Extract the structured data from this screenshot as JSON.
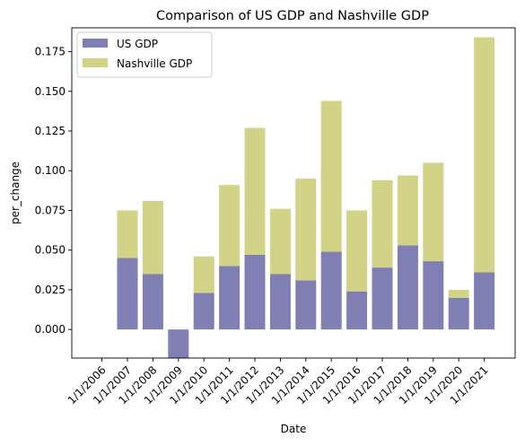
{
  "chart_data": {
    "type": "bar",
    "stacked": true,
    "title": "Comparison of US GDP and Nashville GDP",
    "xlabel": "Date",
    "ylabel": "per_change",
    "categories": [
      "1/1/2006",
      "1/1/2007",
      "1/1/2008",
      "1/1/2009",
      "1/1/2010",
      "1/1/2011",
      "1/1/2012",
      "1/1/2013",
      "1/1/2014",
      "1/1/2015",
      "1/1/2016",
      "1/1/2017",
      "1/1/2018",
      "1/1/2019",
      "1/1/2020",
      "1/1/2021"
    ],
    "series": [
      {
        "name": "US GDP",
        "color": "#7f7fb3",
        "values": [
          null,
          0.045,
          0.035,
          -0.018,
          0.023,
          0.04,
          0.047,
          0.035,
          0.031,
          0.049,
          0.024,
          0.039,
          0.053,
          0.043,
          0.02,
          0.036
        ]
      },
      {
        "name": "Nashville GDP",
        "color": "#d2d386",
        "values": [
          null,
          0.03,
          0.046,
          null,
          0.023,
          0.051,
          0.08,
          0.041,
          0.064,
          0.095,
          0.051,
          0.055,
          0.044,
          0.062,
          0.005,
          0.148
        ]
      }
    ],
    "ylim": [
      -0.018,
      0.19
    ],
    "yticks": [
      0.0,
      0.025,
      0.05,
      0.075,
      0.1,
      0.125,
      0.15,
      0.175
    ],
    "ytick_labels": [
      "0.000",
      "0.025",
      "0.050",
      "0.075",
      "0.100",
      "0.125",
      "0.150",
      "0.175"
    ],
    "grid": false,
    "legend_position": "top-left"
  }
}
